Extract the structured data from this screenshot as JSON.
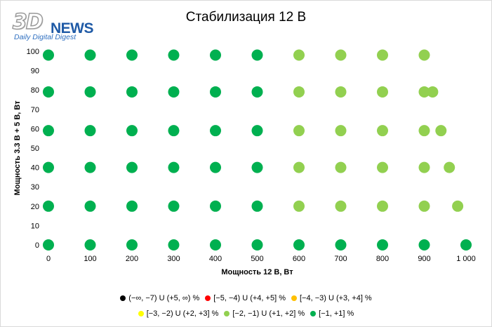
{
  "chart_data": {
    "type": "scatter",
    "title": "Стабилизация 12 В",
    "xlabel": "Мощность  12 В, Вт",
    "ylabel": "Мощность  3.3 В + 5 В, Вт",
    "xlim": [
      0,
      1000
    ],
    "ylim": [
      0,
      100
    ],
    "x_ticks": [
      "0",
      "100",
      "200",
      "300",
      "400",
      "500",
      "600",
      "700",
      "800",
      "900",
      "1 000"
    ],
    "y_ticks": [
      "0",
      "10",
      "20",
      "30",
      "40",
      "50",
      "60",
      "70",
      "80",
      "90",
      "100"
    ],
    "grid": false,
    "legend_position": "bottom",
    "series": [
      {
        "name": "(−∞, −7) U (+5, ∞) %",
        "color": "#000000",
        "points": []
      },
      {
        "name": "[−5, −4) U (+4, +5] %",
        "color": "#ff0000",
        "points": []
      },
      {
        "name": "[−4, −3) U (+3, +4] %",
        "color": "#ffc000",
        "points": []
      },
      {
        "name": "[−3, −2) U (+2, +3] %",
        "color": "#ffff00",
        "points": []
      },
      {
        "name": "[−2, −1) U (+1, +2] %",
        "color": "#92d050",
        "points": [
          [
            600,
            98
          ],
          [
            700,
            98
          ],
          [
            800,
            98
          ],
          [
            900,
            98
          ],
          [
            600,
            79
          ],
          [
            700,
            79
          ],
          [
            800,
            79
          ],
          [
            900,
            79
          ],
          [
            920,
            79
          ],
          [
            600,
            59
          ],
          [
            700,
            59
          ],
          [
            800,
            59
          ],
          [
            900,
            59
          ],
          [
            940,
            59
          ],
          [
            600,
            40
          ],
          [
            700,
            40
          ],
          [
            800,
            40
          ],
          [
            900,
            40
          ],
          [
            960,
            40
          ],
          [
            600,
            20
          ],
          [
            700,
            20
          ],
          [
            800,
            20
          ],
          [
            900,
            20
          ],
          [
            980,
            20
          ]
        ]
      },
      {
        "name": "[−1, +1] %",
        "color": "#00b050",
        "points": [
          [
            0,
            98
          ],
          [
            100,
            98
          ],
          [
            200,
            98
          ],
          [
            300,
            98
          ],
          [
            400,
            98
          ],
          [
            500,
            98
          ],
          [
            0,
            79
          ],
          [
            100,
            79
          ],
          [
            200,
            79
          ],
          [
            300,
            79
          ],
          [
            400,
            79
          ],
          [
            500,
            79
          ],
          [
            0,
            59
          ],
          [
            100,
            59
          ],
          [
            200,
            59
          ],
          [
            300,
            59
          ],
          [
            400,
            59
          ],
          [
            500,
            59
          ],
          [
            0,
            40
          ],
          [
            100,
            40
          ],
          [
            200,
            40
          ],
          [
            300,
            40
          ],
          [
            400,
            40
          ],
          [
            500,
            40
          ],
          [
            0,
            20
          ],
          [
            100,
            20
          ],
          [
            200,
            20
          ],
          [
            300,
            20
          ],
          [
            400,
            20
          ],
          [
            500,
            20
          ],
          [
            0,
            0
          ],
          [
            100,
            0
          ],
          [
            200,
            0
          ],
          [
            300,
            0
          ],
          [
            400,
            0
          ],
          [
            500,
            0
          ],
          [
            600,
            0
          ],
          [
            700,
            0
          ],
          [
            800,
            0
          ],
          [
            900,
            0
          ],
          [
            1000,
            0
          ]
        ]
      }
    ]
  },
  "logo": {
    "mark": "3D",
    "word": "NEWS",
    "tagline": "Daily Digital Digest"
  }
}
